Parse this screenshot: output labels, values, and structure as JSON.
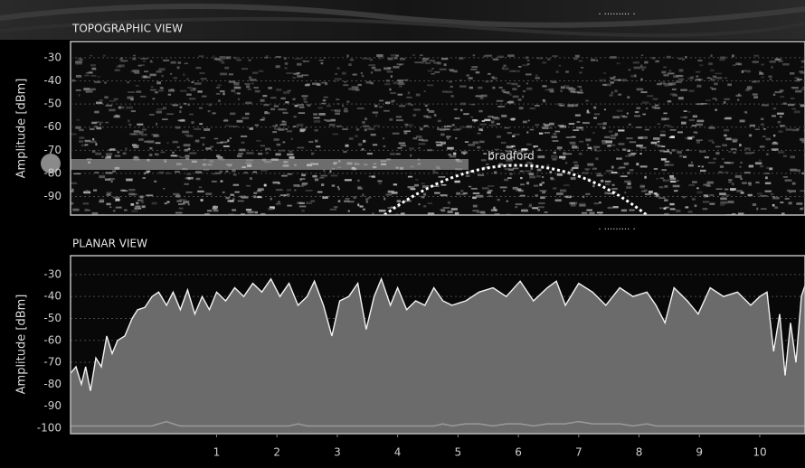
{
  "chart_data": [
    {
      "type": "spectrogram",
      "title": "TOPOGRAPHIC VIEW",
      "ylabel": "Amplitude [dBm]",
      "ylim": [
        -98,
        -23
      ],
      "yticks": [
        -30,
        -40,
        -50,
        -60,
        -70,
        -80,
        -90
      ],
      "grid": true,
      "annotation": "bradford"
    },
    {
      "type": "area",
      "title": "PLANAR VIEW",
      "ylabel": "Amplitude [dBm]",
      "ylim": [
        -102.5,
        -21.4
      ],
      "yticks": [
        -30,
        -40,
        -50,
        -60,
        -70,
        -80,
        -90,
        -100
      ],
      "grid": true,
      "xlim": [
        -1.42,
        10.75
      ],
      "xticks": [
        1,
        2,
        3,
        4,
        5,
        6,
        7,
        8,
        9,
        10
      ],
      "x": [
        -1.42,
        -1.33,
        -1.24,
        -1.17,
        -1.09,
        -1.0,
        -0.91,
        -0.82,
        -0.73,
        -0.64,
        -0.52,
        -0.4,
        -0.31,
        -0.19,
        -0.07,
        0.04,
        0.17,
        0.28,
        0.4,
        0.52,
        0.64,
        0.76,
        0.88,
        1.0,
        1.15,
        1.3,
        1.45,
        1.6,
        1.75,
        1.9,
        2.05,
        2.2,
        2.35,
        2.5,
        2.62,
        2.77,
        2.91,
        3.04,
        3.19,
        3.34,
        3.48,
        3.61,
        3.73,
        3.88,
        4.0,
        4.15,
        4.3,
        4.45,
        4.6,
        4.75,
        4.9,
        5.13,
        5.35,
        5.58,
        5.8,
        6.03,
        6.25,
        6.48,
        6.63,
        6.78,
        7.0,
        7.23,
        7.45,
        7.68,
        7.9,
        8.13,
        8.28,
        8.43,
        8.58,
        8.8,
        8.98,
        9.18,
        9.4,
        9.63,
        9.85,
        10.0,
        10.12,
        10.23,
        10.33,
        10.42,
        10.51,
        10.6,
        10.69,
        10.75
      ],
      "series": [
        {
          "color": "#6b6b6b",
          "values": [
            -75,
            -72,
            -80,
            -72,
            -83,
            -68,
            -72,
            -58,
            -66,
            -60,
            -58,
            -50,
            -46,
            -45,
            -40,
            -38,
            -44,
            -38,
            -46,
            -37,
            -48,
            -40,
            -46,
            -38,
            -42,
            -36,
            -40,
            -34,
            -38,
            -32,
            -40,
            -34,
            -44,
            -40,
            -33,
            -44,
            -58,
            -42,
            -40,
            -34,
            -55,
            -40,
            -32,
            -44,
            -36,
            -46,
            -42,
            -44,
            -36,
            -42,
            -44,
            -42,
            -38,
            -36,
            -40,
            -33,
            -42,
            -36,
            -33,
            -44,
            -34,
            -38,
            -44,
            -36,
            -40,
            -38,
            -44,
            -52,
            -36,
            -42,
            -48,
            -36,
            -40,
            -38,
            -44,
            -40,
            -38,
            -65,
            -48,
            -76,
            -52,
            -70,
            -40,
            -35
          ]
        },
        {
          "color": "#9a9a9a",
          "values": [
            -99,
            -99,
            -99,
            -99,
            -99,
            -99,
            -99,
            -99,
            -99,
            -99,
            -99,
            -99,
            -99,
            -99,
            -99,
            -98,
            -97,
            -98,
            -99,
            -99,
            -99,
            -99,
            -99,
            -99,
            -99,
            -99,
            -99,
            -99,
            -99,
            -99,
            -99,
            -99,
            -98,
            -99,
            -99,
            -99,
            -99,
            -99,
            -99,
            -99,
            -99,
            -99,
            -99,
            -99,
            -99,
            -99,
            -99,
            -99,
            -99,
            -98,
            -99,
            -98,
            -98,
            -99,
            -98,
            -98,
            -99,
            -98,
            -98,
            -98,
            -97,
            -98,
            -98,
            -98,
            -99,
            -98,
            -99,
            -99,
            -99,
            -99,
            -99,
            -99,
            -99,
            -99,
            -99,
            -99,
            -99,
            -99,
            -99,
            -99,
            -99,
            -99,
            -99,
            -99
          ]
        }
      ]
    }
  ]
}
